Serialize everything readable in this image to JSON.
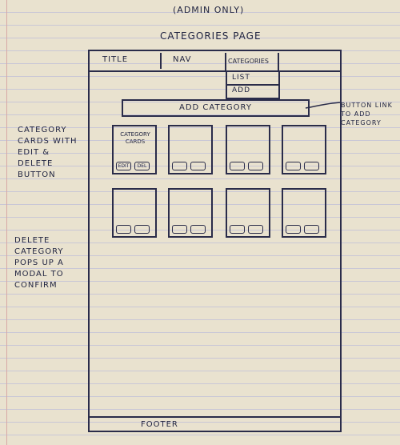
{
  "headings": {
    "top": "(Admin only)",
    "page": "Categories Page"
  },
  "navbar": {
    "title": "Title",
    "nav": "Nav",
    "categories": "Categories"
  },
  "dropdown": {
    "items": [
      "List",
      "Add"
    ]
  },
  "add_button": {
    "label": "Add Category"
  },
  "cards": {
    "first_label": "Category cards",
    "edit_label": "Edit",
    "delete_label": "Del"
  },
  "footer": {
    "label": "Footer"
  },
  "annotations": {
    "cards_note": "Category cards with edit & delete button",
    "modal_note": "Delete category pops up a modal to confirm",
    "button_note": "Button link to add category"
  }
}
